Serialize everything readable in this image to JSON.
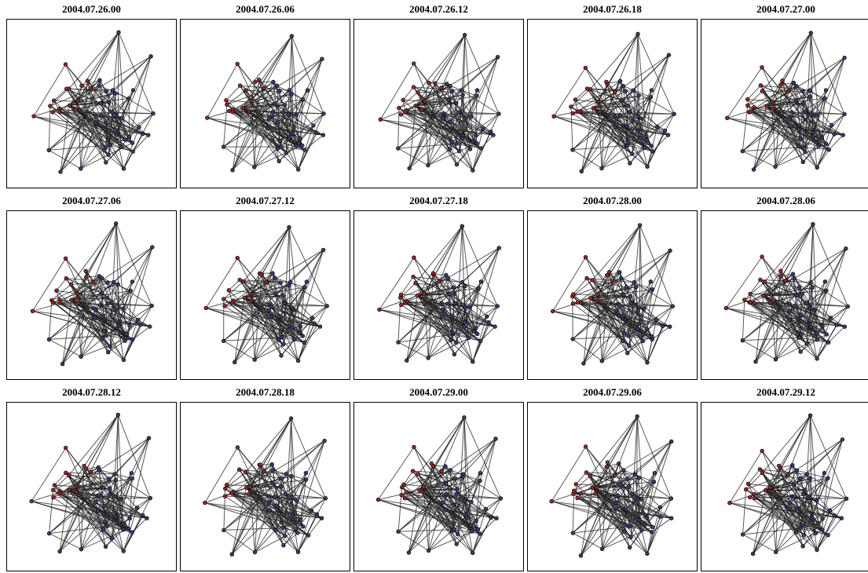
{
  "panels": [
    {
      "title": "2004.07.26.00"
    },
    {
      "title": "2004.07.26.06"
    },
    {
      "title": "2004.07.26.12"
    },
    {
      "title": "2004.07.26.18"
    },
    {
      "title": "2004.07.27.00"
    },
    {
      "title": "2004.07.27.06"
    },
    {
      "title": "2004.07.27.12"
    },
    {
      "title": "2004.07.27.18"
    },
    {
      "title": "2004.07.28.00"
    },
    {
      "title": "2004.07.28.06"
    },
    {
      "title": "2004.07.28.12"
    },
    {
      "title": "2004.07.28.18"
    },
    {
      "title": "2004.07.29.00"
    },
    {
      "title": "2004.07.29.06"
    },
    {
      "title": "2004.07.29.12"
    }
  ],
  "colors": {
    "red_node": "#8a2a2a",
    "blue_node": "#3a3a6a",
    "edge": "#222222",
    "frame": "#000000"
  }
}
